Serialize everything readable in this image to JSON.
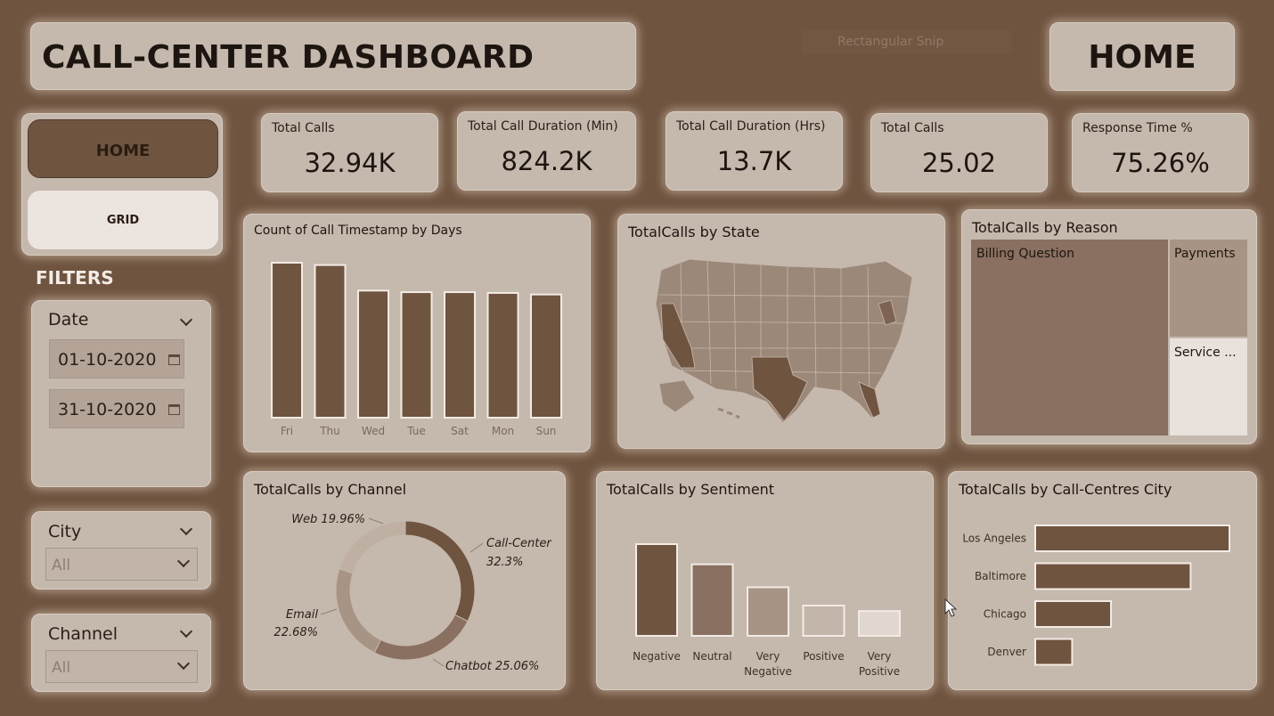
{
  "header": {
    "title": "CALL-CENTER DASHBOARD",
    "snip_text": "Rectangular Snip",
    "page_label": "HOME"
  },
  "nav": {
    "home_label": "HOME",
    "grid_label": "GRID"
  },
  "filters": {
    "label": "FILTERS",
    "date": {
      "label": "Date",
      "start": "01-10-2020",
      "end": "31-10-2020"
    },
    "city": {
      "label": "City",
      "value": "All"
    },
    "channel": {
      "label": "Channel",
      "value": "All"
    }
  },
  "kpis": [
    {
      "label": "Total Calls",
      "value": "32.94K"
    },
    {
      "label": "Total Call Duration (Min)",
      "value": "824.2K"
    },
    {
      "label": "Total Call Duration (Hrs)",
      "value": "13.7K"
    },
    {
      "label": "Total Calls",
      "value": "25.02"
    },
    {
      "label": "Response Time %",
      "value": "75.26%"
    }
  ],
  "colors": {
    "dark": "#8a7060",
    "mid": "#a89484",
    "light": "#e9e1db",
    "bar": "#6f5440"
  },
  "charts": {
    "days": {
      "title": "Count of Call Timestamp by Days",
      "chart_data": {
        "type": "bar",
        "categories": [
          "Fri",
          "Thu",
          "Wed",
          "Tue",
          "Sat",
          "Mon",
          "Sun"
        ],
        "values": [
          100,
          98.5,
          82,
          81,
          81,
          80.5,
          79.5
        ]
      }
    },
    "state": {
      "title": "TotalCalls by State"
    },
    "reason": {
      "title": "TotalCalls by Reason",
      "labels": [
        "Billing Question",
        "Payments",
        "Service ..."
      ]
    },
    "channel": {
      "title": "TotalCalls by Channel",
      "chart_data": {
        "type": "pie",
        "categories": [
          "Call-Center",
          "Chatbot",
          "Email",
          "Web"
        ],
        "values": [
          32.3,
          25.06,
          22.68,
          19.96
        ],
        "labels": [
          "Call-Center",
          "32.3%",
          "Chatbot 25.06%",
          "Email",
          "22.68%",
          "Web 19.96%"
        ]
      }
    },
    "sentiment": {
      "title": "TotalCalls by Sentiment",
      "chart_data": {
        "type": "bar",
        "categories": [
          "Negative",
          "Neutral",
          "Very Negative",
          "Positive",
          "Very Positive"
        ],
        "tick_lines": [
          [
            "Negative"
          ],
          [
            "Neutral"
          ],
          [
            "Very",
            "Negative"
          ],
          [
            "Positive"
          ],
          [
            "Very",
            "Positive"
          ]
        ],
        "values": [
          100,
          78,
          53,
          33,
          27
        ]
      }
    },
    "city": {
      "title": "TotalCalls by Call-Centres City",
      "chart_data": {
        "type": "bar",
        "categories": [
          "Los Angeles",
          "Baltimore",
          "Chicago",
          "Denver"
        ],
        "values": [
          100,
          80,
          39,
          19
        ]
      }
    }
  }
}
